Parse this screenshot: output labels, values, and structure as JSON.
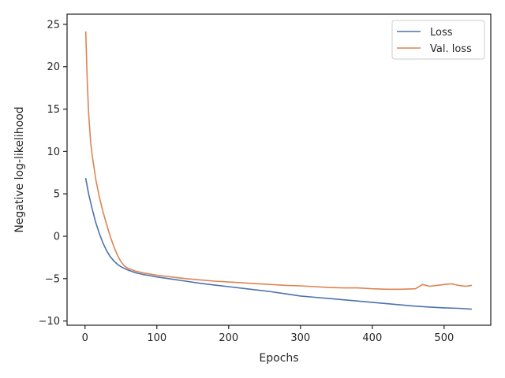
{
  "chart_data": {
    "type": "line",
    "xlabel": "Epochs",
    "ylabel": "Negative log-likelihood",
    "xlim": [
      -25,
      565
    ],
    "ylim": [
      -10.5,
      26.2
    ],
    "xticks": [
      0,
      100,
      200,
      300,
      400,
      500
    ],
    "yticks": [
      -10,
      -5,
      0,
      5,
      10,
      15,
      20,
      25
    ],
    "grid": false,
    "legend_position": "top-right",
    "series": [
      {
        "name": "Loss",
        "color": "#4c72b0",
        "x": [
          1,
          5,
          10,
          15,
          20,
          25,
          30,
          35,
          40,
          45,
          50,
          55,
          60,
          70,
          80,
          90,
          100,
          120,
          140,
          160,
          180,
          200,
          220,
          240,
          260,
          280,
          300,
          320,
          340,
          360,
          380,
          400,
          420,
          440,
          460,
          480,
          500,
          520,
          538
        ],
        "y": [
          6.8,
          5.0,
          3.2,
          1.6,
          0.3,
          -0.8,
          -1.7,
          -2.4,
          -2.9,
          -3.3,
          -3.6,
          -3.8,
          -4.0,
          -4.3,
          -4.5,
          -4.65,
          -4.8,
          -5.05,
          -5.3,
          -5.55,
          -5.75,
          -5.95,
          -6.15,
          -6.35,
          -6.55,
          -6.8,
          -7.05,
          -7.2,
          -7.35,
          -7.5,
          -7.65,
          -7.8,
          -7.95,
          -8.1,
          -8.25,
          -8.35,
          -8.45,
          -8.5,
          -8.6
        ]
      },
      {
        "name": "Val. loss",
        "color": "#dd8452",
        "x": [
          1,
          3,
          5,
          8,
          10,
          15,
          20,
          25,
          30,
          35,
          40,
          45,
          50,
          55,
          60,
          70,
          80,
          90,
          100,
          120,
          140,
          160,
          180,
          200,
          220,
          240,
          260,
          280,
          300,
          320,
          340,
          360,
          380,
          400,
          420,
          440,
          460,
          470,
          480,
          490,
          500,
          510,
          520,
          530,
          538
        ],
        "y": [
          24.1,
          18.5,
          14.5,
          11.0,
          9.5,
          6.7,
          4.6,
          2.9,
          1.4,
          0.0,
          -1.2,
          -2.2,
          -3.0,
          -3.5,
          -3.8,
          -4.1,
          -4.3,
          -4.45,
          -4.6,
          -4.8,
          -5.0,
          -5.15,
          -5.3,
          -5.4,
          -5.5,
          -5.6,
          -5.7,
          -5.8,
          -5.85,
          -5.95,
          -6.05,
          -6.1,
          -6.1,
          -6.2,
          -6.25,
          -6.25,
          -6.2,
          -5.7,
          -5.9,
          -5.8,
          -5.7,
          -5.6,
          -5.8,
          -5.9,
          -5.8
        ]
      }
    ]
  }
}
